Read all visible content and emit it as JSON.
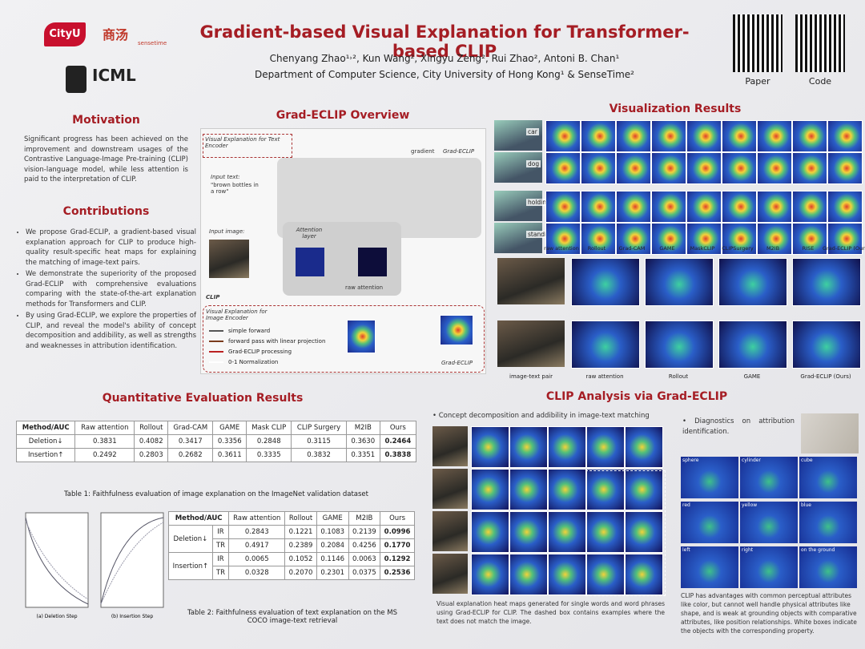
{
  "header": {
    "title": "Gradient-based Visual Explanation for Transformer-based CLIP",
    "authors": "Chenyang Zhao¹˒², Kun Wang², Xingyu Zeng², Rui Zhao², Antoni B. Chan¹",
    "affiliation": "Department of Computer Science, City University of Hong Kong¹ & SenseTime²",
    "logos": [
      "CityU",
      "商汤",
      "sensetime",
      "ICML"
    ],
    "qr_labels": [
      "Paper",
      "Code"
    ]
  },
  "motivation": {
    "heading": "Motivation",
    "text": "Significant progress has been achieved on the improvement and downstream usages of the Contrastive Language-Image Pre-training (CLIP) vision-language model, while less attention is paid to the interpretation of CLIP."
  },
  "contributions": {
    "heading": "Contributions",
    "items": [
      "We propose Grad-ECLIP, a gradient-based visual explanation approach for CLIP to produce high-quality result-specific heat maps for explaining the matching of image-text pairs.",
      "We demonstrate the superiority of the proposed Grad-ECLIP with comprehensive evaluations comparing with the state-of-the-art explanation methods for Transformers and CLIP.",
      "By using Grad-ECLIP, we explore the properties of CLIP, and reveal the model's ability of concept decomposition and addibility, as well as strengths and weaknesses in attribution identification."
    ]
  },
  "overview": {
    "heading": "Grad-ECLIP Overview",
    "text_encoder_label": "Visual Explanation for Text Encoder",
    "input_text_label": "Input text:",
    "input_text": "\"brown bottles in a row\"",
    "input_image_label": "Input image:",
    "attention_layer": "Attention layer",
    "raw_attention": "raw attention",
    "clip": "CLIP",
    "image_encoder_label": "Visual Explanation for Image Encoder",
    "gradient": "gradient",
    "output_name": "Grad-ECLIP",
    "legend": [
      "simple forward",
      "forward pass with linear projection",
      "Grad-ECLIP processing",
      "0-1 Normalization"
    ]
  },
  "visualization": {
    "heading": "Visualization Results",
    "row_labels": [
      "car",
      "dog",
      "holding",
      "standing"
    ],
    "methods": [
      "raw attention",
      "Rollout",
      "Grad-CAM",
      "GAME",
      "MaskCLIP",
      "CLIPSurgery",
      "M2IB",
      "RISE",
      "Grad-ECLIP (Ours)"
    ],
    "bottom_labels": [
      "image-text pair",
      "raw attention",
      "Rollout",
      "GAME",
      "Grad-ECLIP (Ours)"
    ]
  },
  "quantitative": {
    "heading": "Quantitative Evaluation Results",
    "table1": {
      "header": [
        "Method/AUC",
        "Raw attention",
        "Rollout",
        "Grad-CAM",
        "GAME",
        "Mask CLIP",
        "CLIP Surgery",
        "M2IB",
        "Ours"
      ],
      "rows": [
        [
          "Deletion↓",
          "0.3831",
          "0.4082",
          "0.3417",
          "0.3356",
          "0.2848",
          "0.3115",
          "0.3630",
          "0.2464"
        ],
        [
          "Insertion↑",
          "0.2492",
          "0.2803",
          "0.2682",
          "0.3611",
          "0.3335",
          "0.3832",
          "0.3351",
          "0.3838"
        ]
      ],
      "caption": "Table 1: Faithfulness evaluation of image explanation on the ImageNet validation dataset"
    },
    "plot_labels": [
      "(a) Deletion Step",
      "(b) Insertion Step"
    ],
    "table2": {
      "header": [
        "Method/AUC",
        "Raw attention",
        "Rollout",
        "GAME",
        "M2IB",
        "Ours"
      ],
      "groups": [
        {
          "name": "Deletion↓",
          "rows": [
            {
              "sub": "IR",
              "values": [
                "0.2843",
                "0.1221",
                "0.1083",
                "0.2139",
                "0.0996"
              ]
            },
            {
              "sub": "TR",
              "values": [
                "0.4917",
                "0.2389",
                "0.2084",
                "0.4256",
                "0.1770"
              ]
            }
          ]
        },
        {
          "name": "Insertion↑",
          "rows": [
            {
              "sub": "IR",
              "values": [
                "0.0065",
                "0.1052",
                "0.1146",
                "0.0063",
                "0.1292"
              ]
            },
            {
              "sub": "TR",
              "values": [
                "0.0328",
                "0.2070",
                "0.2301",
                "0.0375",
                "0.2536"
              ]
            }
          ]
        }
      ],
      "caption": "Table 2: Faithfulness evaluation of text explanation on the MS COCO image-text retrieval"
    }
  },
  "analysis": {
    "heading": "CLIP Analysis via Grad-ECLIP",
    "concept_bullet": "Concept decomposition and addibility in image-text matching",
    "concept_caption": "Visual explanation heat maps generated for single words and word phrases using Grad-ECLIP for CLIP. The dashed box contains examples where the text does not match the image.",
    "diagnostics_bullet": "Diagnostics on attribution identification.",
    "diagnostics_labels": [
      "sphere",
      "cylinder",
      "cube",
      "red",
      "yellow",
      "blue",
      "left",
      "right",
      "on the ground"
    ],
    "diagnostics_caption": "CLIP has advantages with common perceptual attributes like color, but cannot well handle physical attributes like shape, and is weak at grounding objects with comparative attributes, like position relationships. White boxes indicate the objects with the corresponding property."
  }
}
